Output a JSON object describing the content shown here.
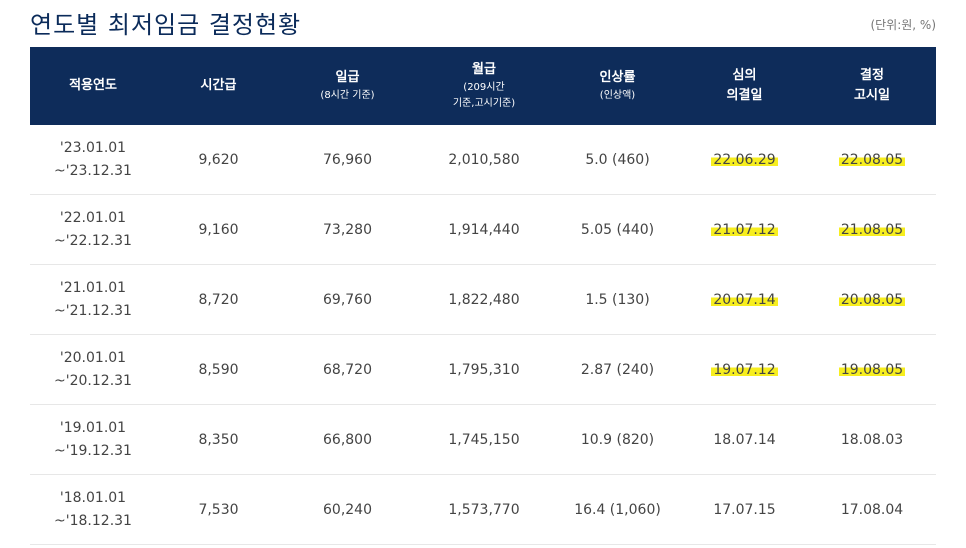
{
  "page": {
    "title": "연도별 최저임금 결정현황",
    "unit_note": "(단위:원, %)"
  },
  "table": {
    "headers": [
      {
        "main": "적용연도",
        "sub": ""
      },
      {
        "main": "시간급",
        "sub": ""
      },
      {
        "main": "일급",
        "sub": "(8시간 기준)"
      },
      {
        "main": "월급",
        "sub": "(209시간",
        "sub2": "기준,고시기준)"
      },
      {
        "main": "인상률",
        "sub": "(인상액)"
      },
      {
        "main": "심의",
        "main2": "의결일"
      },
      {
        "main": "결정",
        "main2": "고시일"
      }
    ],
    "rows": [
      {
        "period_start": "'23.01.01",
        "period_end": "~'23.12.31",
        "hourly": "9,620",
        "daily": "76,960",
        "monthly": "2,010,580",
        "rate": "5.0 (460)",
        "decision_date": "22.06.29",
        "notice_date": "22.08.05",
        "highlighted": true
      },
      {
        "period_start": "'22.01.01",
        "period_end": "~'22.12.31",
        "hourly": "9,160",
        "daily": "73,280",
        "monthly": "1,914,440",
        "rate": "5.05 (440)",
        "decision_date": "21.07.12",
        "notice_date": "21.08.05",
        "highlighted": true
      },
      {
        "period_start": "'21.01.01",
        "period_end": "~'21.12.31",
        "hourly": "8,720",
        "daily": "69,760",
        "monthly": "1,822,480",
        "rate": "1.5 (130)",
        "decision_date": "20.07.14",
        "notice_date": "20.08.05",
        "highlighted": true
      },
      {
        "period_start": "'20.01.01",
        "period_end": "~'20.12.31",
        "hourly": "8,590",
        "daily": "68,720",
        "monthly": "1,795,310",
        "rate": "2.87 (240)",
        "decision_date": "19.07.12",
        "notice_date": "19.08.05",
        "highlighted": true
      },
      {
        "period_start": "'19.01.01",
        "period_end": "~'19.12.31",
        "hourly": "8,350",
        "daily": "66,800",
        "monthly": "1,745,150",
        "rate": "10.9 (820)",
        "decision_date": "18.07.14",
        "notice_date": "18.08.03",
        "highlighted": false
      },
      {
        "period_start": "'18.01.01",
        "period_end": "~'18.12.31",
        "hourly": "7,530",
        "daily": "60,240",
        "monthly": "1,573,770",
        "rate": "16.4 (1,060)",
        "decision_date": "17.07.15",
        "notice_date": "17.08.04",
        "highlighted": false
      }
    ]
  },
  "colors": {
    "header_bg": "#0e2c5a",
    "title": "#0b2b5a",
    "highlight": "#f7ee1f"
  }
}
